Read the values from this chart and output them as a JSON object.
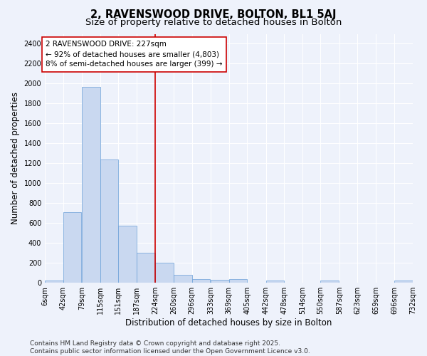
{
  "title": "2, RAVENSWOOD DRIVE, BOLTON, BL1 5AJ",
  "subtitle": "Size of property relative to detached houses in Bolton",
  "xlabel": "Distribution of detached houses by size in Bolton",
  "ylabel": "Number of detached properties",
  "bar_color": "#c9d8f0",
  "bar_edge_color": "#6a9fd8",
  "background_color": "#eef2fb",
  "grid_color": "#ffffff",
  "bins": [
    6,
    42,
    79,
    115,
    151,
    187,
    224,
    260,
    296,
    333,
    369,
    405,
    442,
    478,
    514,
    550,
    587,
    623,
    659,
    696,
    732
  ],
  "counts": [
    20,
    710,
    1970,
    1240,
    575,
    305,
    200,
    80,
    40,
    30,
    35,
    0,
    25,
    0,
    0,
    20,
    0,
    0,
    0,
    20
  ],
  "vline_x": 224,
  "vline_color": "#cc0000",
  "annotation_line1": "2 RAVENSWOOD DRIVE: 227sqm",
  "annotation_line2": "← 92% of detached houses are smaller (4,803)",
  "annotation_line3": "8% of semi-detached houses are larger (399) →",
  "annotation_box_color": "white",
  "annotation_box_edge": "#cc0000",
  "ylim": [
    0,
    2500
  ],
  "yticks": [
    0,
    200,
    400,
    600,
    800,
    1000,
    1200,
    1400,
    1600,
    1800,
    2000,
    2200,
    2400
  ],
  "tick_labels": [
    "6sqm",
    "42sqm",
    "79sqm",
    "115sqm",
    "151sqm",
    "187sqm",
    "224sqm",
    "260sqm",
    "296sqm",
    "333sqm",
    "369sqm",
    "405sqm",
    "442sqm",
    "478sqm",
    "514sqm",
    "550sqm",
    "587sqm",
    "623sqm",
    "659sqm",
    "696sqm",
    "732sqm"
  ],
  "footer_text": "Contains HM Land Registry data © Crown copyright and database right 2025.\nContains public sector information licensed under the Open Government Licence v3.0.",
  "title_fontsize": 10.5,
  "subtitle_fontsize": 9.5,
  "xlabel_fontsize": 8.5,
  "ylabel_fontsize": 8.5,
  "tick_fontsize": 7,
  "annotation_fontsize": 7.5,
  "footer_fontsize": 6.5
}
